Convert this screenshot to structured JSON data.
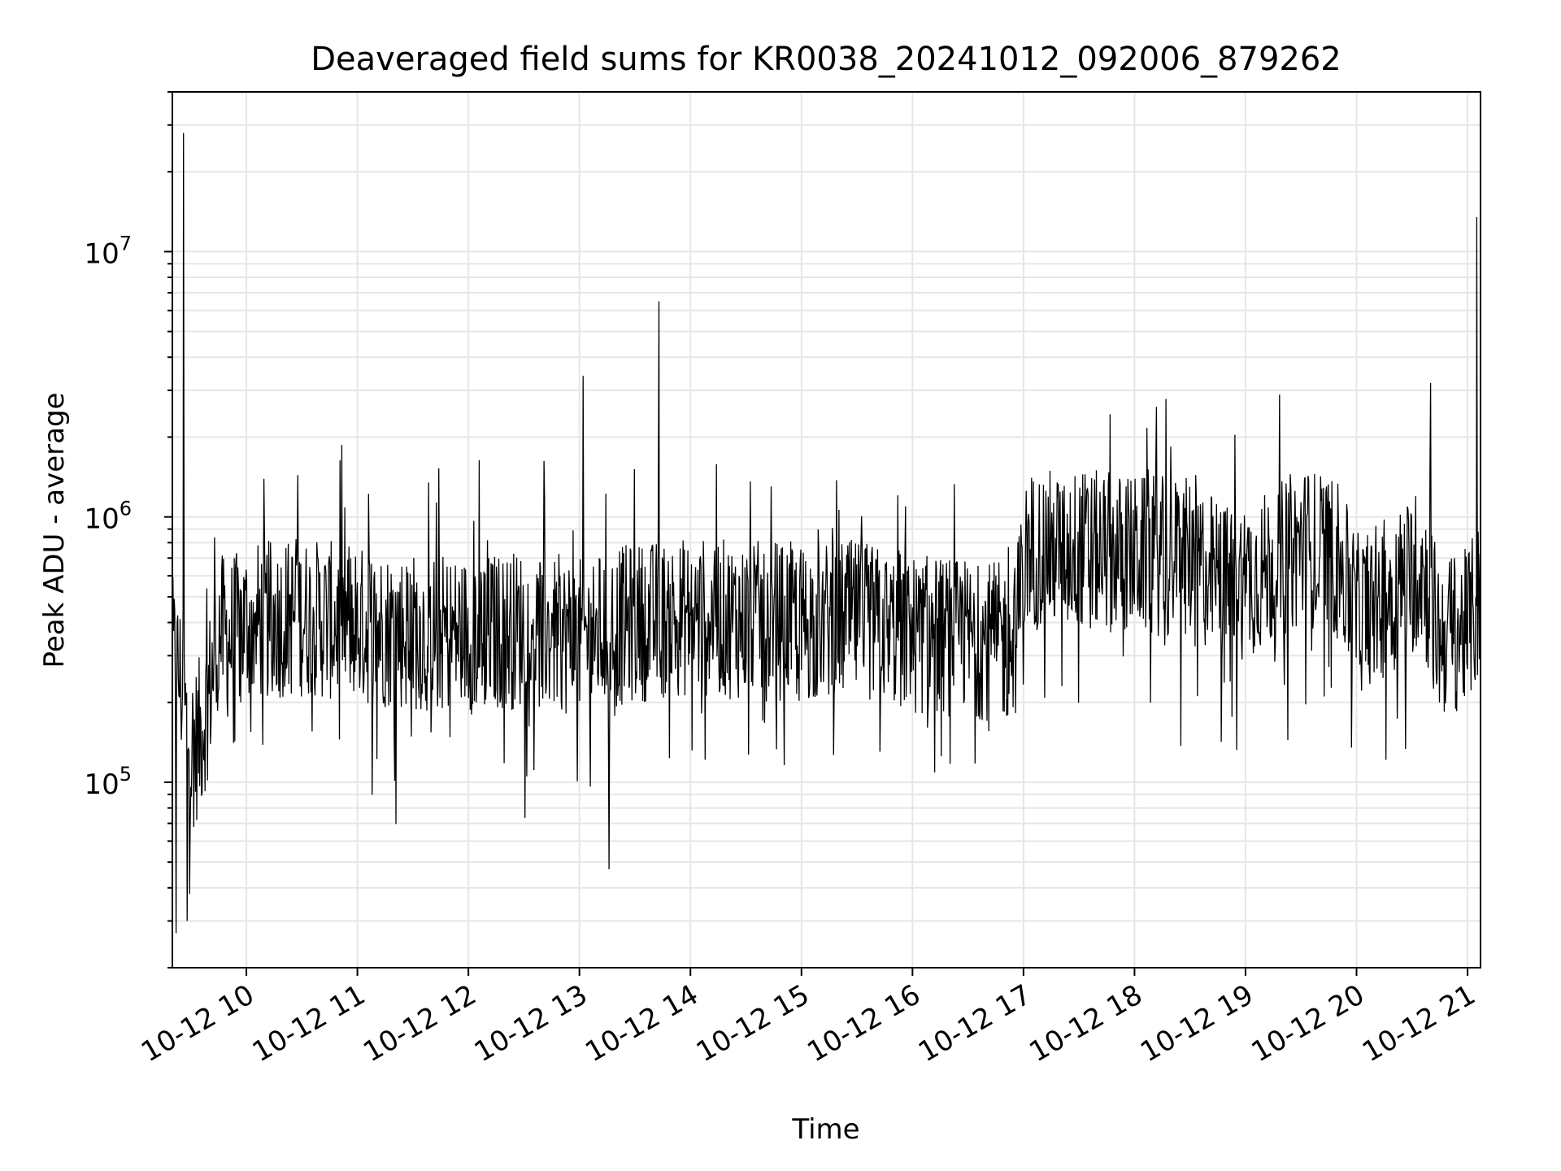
{
  "chart_data": {
    "type": "line",
    "title": "Deaveraged field sums for KR0038_20241012_092006_879262",
    "xlabel": "Time",
    "ylabel": "Peak ADU - average",
    "yscale": "log",
    "ylim": [
      20000,
      40000000
    ],
    "xlim": [
      "2024-10-12 09:20",
      "2024-10-12 21:07"
    ],
    "grid": true,
    "line_color": "#000000",
    "x_ticks": [
      {
        "t": "2024-10-12 10:00",
        "label": "10-12 10"
      },
      {
        "t": "2024-10-12 11:00",
        "label": "10-12 11"
      },
      {
        "t": "2024-10-12 12:00",
        "label": "10-12 12"
      },
      {
        "t": "2024-10-12 13:00",
        "label": "10-12 13"
      },
      {
        "t": "2024-10-12 14:00",
        "label": "10-12 14"
      },
      {
        "t": "2024-10-12 15:00",
        "label": "10-12 15"
      },
      {
        "t": "2024-10-12 16:00",
        "label": "10-12 16"
      },
      {
        "t": "2024-10-12 17:00",
        "label": "10-12 17"
      },
      {
        "t": "2024-10-12 18:00",
        "label": "10-12 18"
      },
      {
        "t": "2024-10-12 19:00",
        "label": "10-12 19"
      },
      {
        "t": "2024-10-12 20:00",
        "label": "10-12 20"
      },
      {
        "t": "2024-10-12 21:00",
        "label": "10-12 21"
      }
    ],
    "y_ticks": [
      {
        "value": 100000,
        "base": "10",
        "exp": "5"
      },
      {
        "value": 1000000,
        "base": "10",
        "exp": "6"
      },
      {
        "value": 10000000,
        "base": "10",
        "exp": "7"
      }
    ],
    "series": [
      {
        "values": [
          {
            "x": "2024-10-12 09:20",
            "y": 300000
          },
          {
            "x": "2024-10-12 09:24",
            "y": 250000
          },
          {
            "x": "2024-10-12 09:27",
            "y": 180000
          },
          {
            "x": "2024-10-12 09:30",
            "y": 130000
          },
          {
            "x": "2024-10-12 09:35",
            "y": 150000
          },
          {
            "x": "2024-10-12 09:40",
            "y": 220000
          },
          {
            "x": "2024-10-12 09:45",
            "y": 380000
          },
          {
            "x": "2024-10-12 09:50",
            "y": 340000
          },
          {
            "x": "2024-10-12 10:00",
            "y": 400000
          },
          {
            "x": "2024-10-12 10:30",
            "y": 420000
          },
          {
            "x": "2024-10-12 11:00",
            "y": 390000
          },
          {
            "x": "2024-10-12 11:30",
            "y": 370000
          },
          {
            "x": "2024-10-12 12:00",
            "y": 360000
          },
          {
            "x": "2024-10-12 12:30",
            "y": 380000
          },
          {
            "x": "2024-10-12 13:00",
            "y": 350000
          },
          {
            "x": "2024-10-12 13:30",
            "y": 400000
          },
          {
            "x": "2024-10-12 14:00",
            "y": 420000
          },
          {
            "x": "2024-10-12 14:30",
            "y": 410000
          },
          {
            "x": "2024-10-12 15:00",
            "y": 400000
          },
          {
            "x": "2024-10-12 15:30",
            "y": 410000
          },
          {
            "x": "2024-10-12 16:00",
            "y": 360000
          },
          {
            "x": "2024-10-12 16:30",
            "y": 350000
          },
          {
            "x": "2024-10-12 16:55",
            "y": 330000
          },
          {
            "x": "2024-10-12 17:02",
            "y": 750000
          },
          {
            "x": "2024-10-12 17:30",
            "y": 760000
          },
          {
            "x": "2024-10-12 18:00",
            "y": 720000
          },
          {
            "x": "2024-10-12 18:30",
            "y": 700000
          },
          {
            "x": "2024-10-12 18:50",
            "y": 560000
          },
          {
            "x": "2024-10-12 19:10",
            "y": 620000
          },
          {
            "x": "2024-10-12 19:30",
            "y": 780000
          },
          {
            "x": "2024-10-12 19:50",
            "y": 700000
          },
          {
            "x": "2024-10-12 20:00",
            "y": 430000
          },
          {
            "x": "2024-10-12 20:20",
            "y": 520000
          },
          {
            "x": "2024-10-12 20:35",
            "y": 650000
          },
          {
            "x": "2024-10-12 20:45",
            "y": 350000
          },
          {
            "x": "2024-10-12 21:00",
            "y": 380000
          },
          {
            "x": "2024-10-12 21:07",
            "y": 500000
          }
        ],
        "spikes": [
          {
            "x": "2024-10-12 09:26",
            "y": 28000000
          },
          {
            "x": "2024-10-12 13:02",
            "y": 3400000
          },
          {
            "x": "2024-10-12 13:43",
            "y": 6500000
          },
          {
            "x": "2024-10-12 20:40",
            "y": 3200000
          },
          {
            "x": "2024-10-12 21:05",
            "y": 13500000
          },
          {
            "x": "2024-10-12 09:22",
            "y": 27000
          },
          {
            "x": "2024-10-12 09:28",
            "y": 30000
          },
          {
            "x": "2024-10-12 13:16",
            "y": 47000
          }
        ]
      }
    ]
  }
}
